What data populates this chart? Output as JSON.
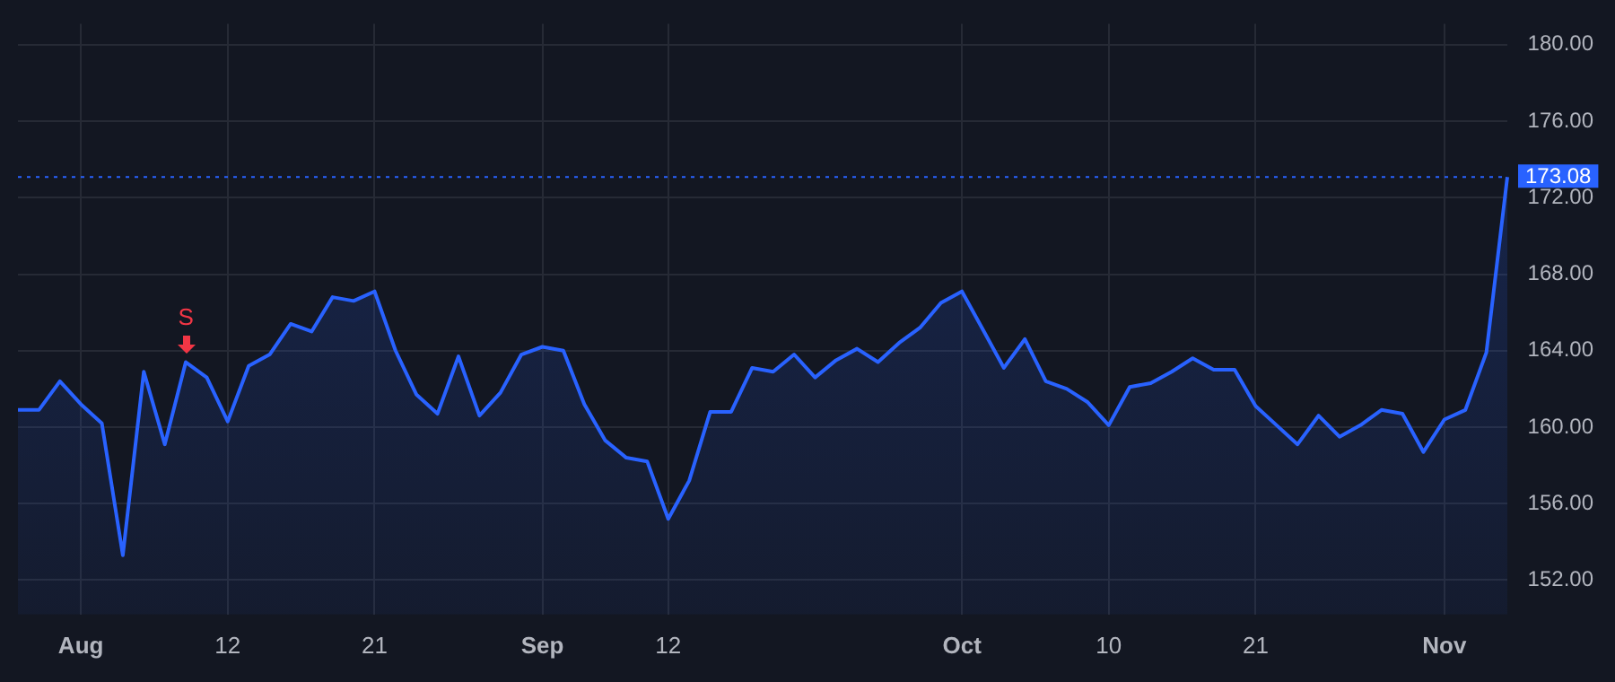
{
  "chart_data": {
    "type": "area",
    "categories": [
      null,
      null,
      null,
      "Aug",
      null,
      null,
      null,
      null,
      null,
      null,
      "12",
      null,
      null,
      null,
      null,
      null,
      null,
      "21",
      null,
      null,
      null,
      null,
      null,
      null,
      null,
      "Sep",
      null,
      null,
      null,
      null,
      null,
      "12",
      null,
      null,
      null,
      null,
      null,
      null,
      null,
      null,
      null,
      null,
      null,
      null,
      null,
      "Oct",
      null,
      null,
      null,
      null,
      null,
      null,
      "10",
      null,
      null,
      null,
      null,
      null,
      null,
      "21",
      null,
      null,
      null,
      null,
      null,
      null,
      null,
      null,
      "Nov",
      null,
      null,
      null
    ],
    "series": [
      {
        "color": "#2962ff",
        "values": [
          160.9,
          160.9,
          162.4,
          161.2,
          160.2,
          153.3,
          162.9,
          159.1,
          163.4,
          162.6,
          160.3,
          163.2,
          163.8,
          165.4,
          165.0,
          166.8,
          166.6,
          167.1,
          164.0,
          161.7,
          160.7,
          163.7,
          160.6,
          161.8,
          163.8,
          164.2,
          164.0,
          161.2,
          159.3,
          158.4,
          158.2,
          155.2,
          157.2,
          160.8,
          160.8,
          163.1,
          162.9,
          163.8,
          162.6,
          163.5,
          164.1,
          163.4,
          164.4,
          165.2,
          166.5,
          167.1,
          165.1,
          163.1,
          164.6,
          162.4,
          162.0,
          161.3,
          160.1,
          162.1,
          162.3,
          162.9,
          163.6,
          163.0,
          163.0,
          161.1,
          160.1,
          159.1,
          160.6,
          159.5,
          160.1,
          160.9,
          160.7,
          158.7,
          160.4,
          160.9,
          163.9,
          173.08
        ]
      }
    ],
    "ylim": [
      150.2,
      181.1
    ],
    "yticks": [
      {
        "value": 152,
        "label": "152.00"
      },
      {
        "value": 156,
        "label": "156.00"
      },
      {
        "value": 160,
        "label": "160.00"
      },
      {
        "value": 164,
        "label": "164.00"
      },
      {
        "value": 168,
        "label": "168.00"
      },
      {
        "value": 172,
        "label": "172.00"
      },
      {
        "value": 176,
        "label": "176.00"
      },
      {
        "value": 180,
        "label": "180.00"
      }
    ],
    "ref_lines": [
      {
        "axis": "y",
        "value": 173.08,
        "label": "173.08",
        "color": "#2962ff",
        "line_style": "dotted"
      }
    ],
    "annotations": [
      {
        "text": "S",
        "y": 163.4
      }
    ],
    "grid": true,
    "legend": false,
    "marker": "none",
    "line_style": "solid"
  }
}
